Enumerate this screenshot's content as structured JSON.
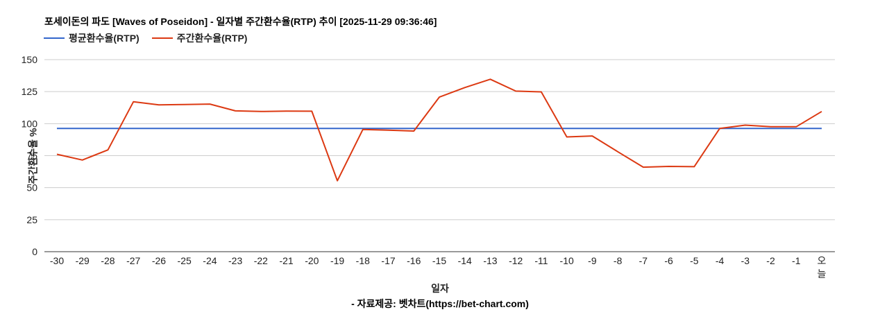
{
  "title": "포세이돈의 파도 [Waves of Poseidon] - 일자별 주간환수율(RTP) 추이 [2025-11-29 09:36:46]",
  "legend": [
    {
      "label": "평균환수율(RTP)",
      "color": "#3366cc"
    },
    {
      "label": "주간환수율(RTP)",
      "color": "#dc3912"
    }
  ],
  "xlabel": "일자",
  "ylabel": "주간환수율 %",
  "credit": "- 자료제공: 벳차트(https://bet-chart.com)",
  "chart_data": {
    "type": "line",
    "title": "포세이돈의 파도 [Waves of Poseidon] - 일자별 주간환수율(RTP) 추이 [2025-11-29 09:36:46]",
    "xlabel": "일자",
    "ylabel": "주간환수율 %",
    "ylim": [
      0,
      150
    ],
    "yticks": [
      0,
      25,
      50,
      75,
      100,
      125,
      150
    ],
    "grid": true,
    "legend_position": "top",
    "categories": [
      "-30",
      "-29",
      "-28",
      "-27",
      "-26",
      "-25",
      "-24",
      "-23",
      "-22",
      "-21",
      "-20",
      "-19",
      "-18",
      "-17",
      "-16",
      "-15",
      "-14",
      "-13",
      "-12",
      "-11",
      "-10",
      "-9",
      "-8",
      "-7",
      "-6",
      "-5",
      "-4",
      "-3",
      "-2",
      "-1",
      "오늘"
    ],
    "series": [
      {
        "name": "평균환수율(RTP)",
        "color": "#3366cc",
        "values": [
          96.3,
          96.3,
          96.3,
          96.3,
          96.3,
          96.3,
          96.3,
          96.3,
          96.3,
          96.3,
          96.3,
          96.3,
          96.3,
          96.3,
          96.3,
          96.3,
          96.3,
          96.3,
          96.3,
          96.3,
          96.3,
          96.3,
          96.3,
          96.3,
          96.3,
          96.3,
          96.3,
          96.3,
          96.3,
          96.3,
          96.3
        ]
      },
      {
        "name": "주간환수율(RTP)",
        "color": "#dc3912",
        "values": [
          76.1,
          71.6,
          79.5,
          117.1,
          114.7,
          114.9,
          115.3,
          110.0,
          109.5,
          109.8,
          109.7,
          55.4,
          95.4,
          94.9,
          94.2,
          120.7,
          128.2,
          134.7,
          125.4,
          124.8,
          89.6,
          90.4,
          78.1,
          66.0,
          66.6,
          66.4,
          96.3,
          98.8,
          97.6,
          97.6,
          109.5
        ]
      }
    ]
  }
}
